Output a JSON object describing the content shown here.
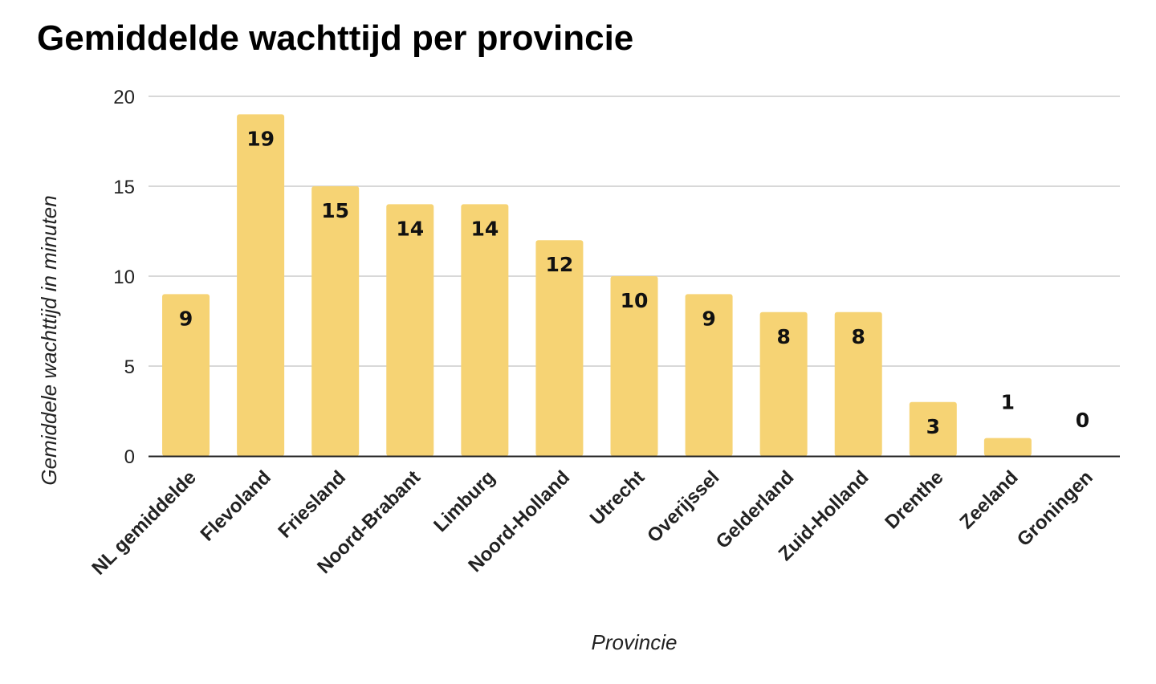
{
  "chart_data": {
    "type": "bar",
    "title": "Gemiddelde wachttijd per provincie",
    "xlabel": "Provincie",
    "ylabel": "Gemiddele wachttijd in minuten",
    "categories": [
      "NL gemiddelde",
      "Flevoland",
      "Friesland",
      "Noord-Brabant",
      "Limburg",
      "Noord-Holland",
      "Utrecht",
      "Overijssel",
      "Gelderland",
      "Zuid-Holland",
      "Drenthe",
      "Zeeland",
      "Groningen"
    ],
    "values": [
      9,
      19,
      15,
      14,
      14,
      12,
      10,
      9,
      8,
      8,
      3,
      1,
      0
    ],
    "data_labels": [
      "9",
      "19",
      "15",
      "14",
      "14",
      "12",
      "10",
      "9",
      "8",
      "8",
      "3",
      "1",
      "0"
    ],
    "yticks": [
      "0",
      "5",
      "10",
      "15",
      "20"
    ],
    "ylim": [
      0,
      20
    ],
    "grid": true,
    "legend": "none",
    "colors": {
      "bar": "#F6D374",
      "grid": "#CCCCCC",
      "axis": "#222222"
    }
  }
}
